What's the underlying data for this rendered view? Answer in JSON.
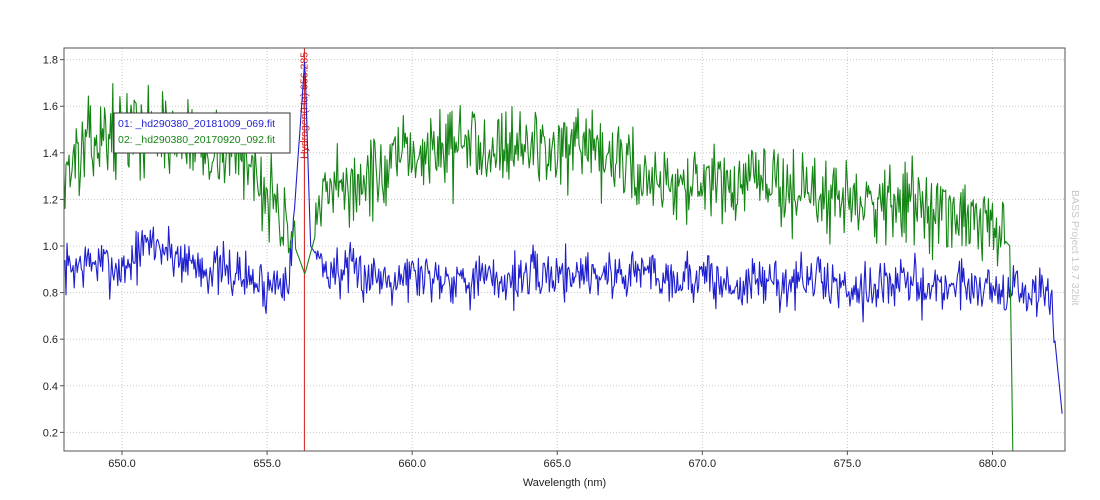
{
  "chart_data": {
    "type": "line",
    "title": "",
    "xlabel": "Wavelength (nm)",
    "ylabel": "",
    "xlim": [
      648.0,
      682.5
    ],
    "ylim": [
      0.12,
      1.85
    ],
    "x_ticks": [
      650.0,
      655.0,
      660.0,
      665.0,
      670.0,
      675.0,
      680.0
    ],
    "x_tick_labels": [
      "650.0",
      "655.0",
      "660.0",
      "665.0",
      "670.0",
      "675.0",
      "680.0"
    ],
    "y_ticks": [
      0.2,
      0.4,
      0.6,
      0.8,
      1.0,
      1.2,
      1.4,
      1.6,
      1.8
    ],
    "y_tick_labels": [
      "0.2",
      "0.4",
      "0.6",
      "0.8",
      "1.0",
      "1.2",
      "1.4",
      "1.6",
      "1.8"
    ],
    "grid": true,
    "legend_position": "top-left",
    "series": [
      {
        "name": "01: _hd290380_20181009_069.fit",
        "color": "#1f1fcf",
        "x": [
          648.0,
          649.0,
          650.0,
          651.0,
          652.0,
          653.0,
          654.0,
          655.0,
          655.8,
          656.3,
          656.5,
          657.0,
          658.0,
          659.0,
          660.0,
          661.0,
          662.0,
          663.0,
          664.0,
          665.0,
          666.0,
          667.0,
          668.0,
          669.0,
          670.0,
          671.0,
          672.0,
          673.0,
          674.0,
          675.0,
          676.0,
          677.0,
          678.0,
          679.0,
          680.0,
          681.0,
          682.0,
          682.4
        ],
        "y": [
          0.9,
          0.93,
          0.9,
          1.02,
          0.95,
          0.9,
          0.88,
          0.82,
          0.9,
          1.8,
          1.0,
          0.9,
          0.88,
          0.87,
          0.88,
          0.87,
          0.86,
          0.85,
          0.87,
          0.88,
          0.89,
          0.87,
          0.9,
          0.86,
          0.87,
          0.82,
          0.85,
          0.84,
          0.86,
          0.82,
          0.83,
          0.84,
          0.82,
          0.84,
          0.82,
          0.8,
          0.79,
          0.28
        ]
      },
      {
        "name": "02: _hd290380_20170920_092.fit",
        "color": "#148414",
        "x": [
          648.0,
          649.0,
          650.0,
          651.0,
          652.0,
          653.0,
          654.0,
          655.0,
          655.8,
          656.3,
          657.0,
          658.0,
          659.0,
          660.0,
          661.0,
          662.0,
          663.0,
          664.0,
          665.0,
          666.0,
          667.0,
          668.0,
          669.0,
          670.0,
          671.0,
          672.0,
          673.0,
          674.0,
          675.0,
          676.0,
          677.0,
          678.0,
          679.0,
          680.0,
          680.6,
          680.7
        ],
        "y": [
          1.32,
          1.45,
          1.5,
          1.5,
          1.46,
          1.42,
          1.4,
          1.25,
          1.05,
          0.88,
          1.2,
          1.27,
          1.3,
          1.4,
          1.42,
          1.44,
          1.45,
          1.43,
          1.42,
          1.38,
          1.37,
          1.3,
          1.28,
          1.25,
          1.25,
          1.28,
          1.25,
          1.2,
          1.22,
          1.2,
          1.2,
          1.15,
          1.1,
          1.08,
          1.0,
          0.12
        ]
      }
    ],
    "annotations": [
      {
        "label": "Hydrogen(Hα) 656.285",
        "x": 656.285,
        "color": "#d01818"
      }
    ],
    "watermark": "BASS Project 1.9.7 32bit"
  }
}
